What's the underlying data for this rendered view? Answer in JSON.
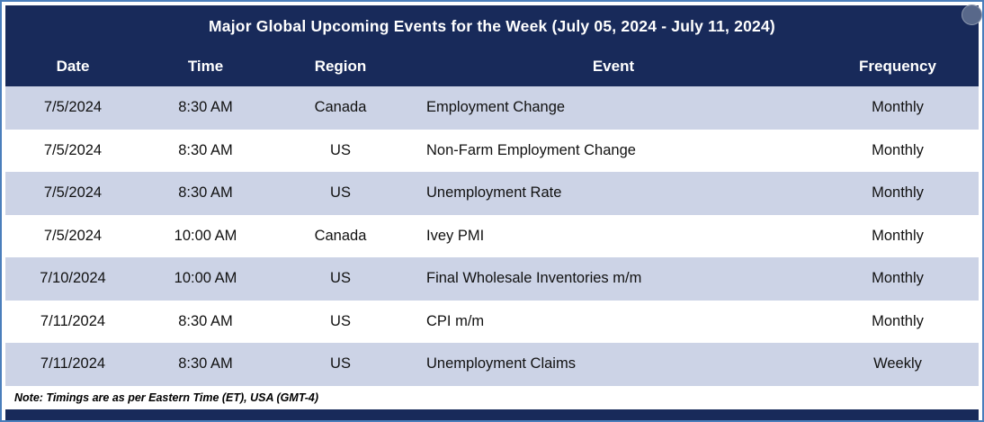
{
  "chart_data": {
    "type": "table",
    "title": "Major Global Upcoming Events for the Week (July 05, 2024 - July 11, 2024)",
    "columns": [
      "Date",
      "Time",
      "Region",
      "Event",
      "Frequency"
    ],
    "rows": [
      {
        "date": "7/5/2024",
        "time": "8:30 AM",
        "region": "Canada",
        "event": "Employment Change",
        "frequency": "Monthly"
      },
      {
        "date": "7/5/2024",
        "time": "8:30 AM",
        "region": "US",
        "event": "Non-Farm Employment Change",
        "frequency": "Monthly"
      },
      {
        "date": "7/5/2024",
        "time": "8:30 AM",
        "region": "US",
        "event": "Unemployment Rate",
        "frequency": "Monthly"
      },
      {
        "date": "7/5/2024",
        "time": "10:00 AM",
        "region": "Canada",
        "event": "Ivey PMI",
        "frequency": "Monthly"
      },
      {
        "date": "7/10/2024",
        "time": "10:00 AM",
        "region": "US",
        "event": "Final Wholesale Inventories m/m",
        "frequency": "Monthly"
      },
      {
        "date": "7/11/2024",
        "time": "8:30 AM",
        "region": "US",
        "event": "CPI m/m",
        "frequency": "Monthly"
      },
      {
        "date": "7/11/2024",
        "time": "8:30 AM",
        "region": "US",
        "event": "Unemployment Claims",
        "frequency": "Weekly"
      }
    ],
    "note": "Note: Timings are as per Eastern Time (ET), USA (GMT-4)",
    "layout_hints": {
      "header_position": "top",
      "striped": true
    }
  },
  "colors": {
    "header_bg": "#182a5a",
    "row_alt_bg": "#ccd3e6",
    "border": "#4a7ebb",
    "text": "#111111"
  },
  "icons": {
    "corner": "translate-icon"
  }
}
